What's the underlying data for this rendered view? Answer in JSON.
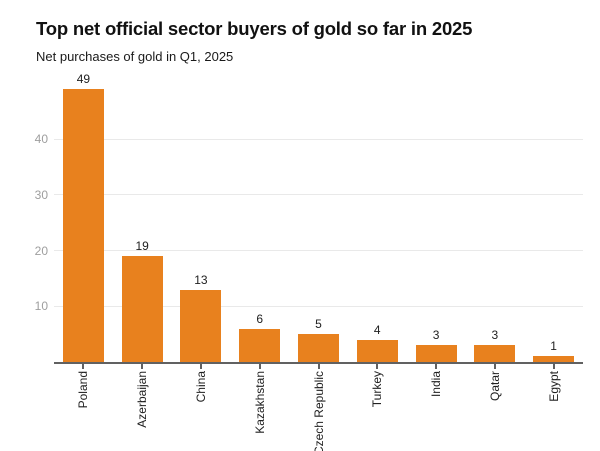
{
  "header": {
    "title": "Top net official sector buyers of gold so far in 2025",
    "subtitle": "Net purchases of gold in Q1, 2025"
  },
  "chart_data": {
    "type": "bar",
    "title": "Top net official sector buyers of gold so far in 2025",
    "subtitle": "Net purchases of gold in Q1, 2025",
    "categories": [
      "Poland",
      "Azerbaijan",
      "China",
      "Kazakhstan",
      "Czech Republic",
      "Turkey",
      "India",
      "Qatar",
      "Egypt"
    ],
    "values": [
      49,
      19,
      13,
      6,
      5,
      4,
      3,
      3,
      1
    ],
    "data_labels": [
      "49",
      "19",
      "13",
      "6",
      "5",
      "4",
      "3",
      "3",
      "1"
    ],
    "xlabel": "",
    "ylabel": "",
    "ylim": [
      0,
      51.5
    ],
    "yticks": [
      10,
      20,
      30,
      40
    ],
    "grid": true,
    "legend": false,
    "colors": {
      "bar": "#e8811e",
      "gridline": "#e9e9e9",
      "axis_line": "#616161",
      "y_tick_label": "#9e9e9e",
      "value_label": "#212121",
      "category_label": "#212121",
      "title": "#111111",
      "subtitle": "#1a1a1a",
      "background": "#ffffff"
    }
  }
}
